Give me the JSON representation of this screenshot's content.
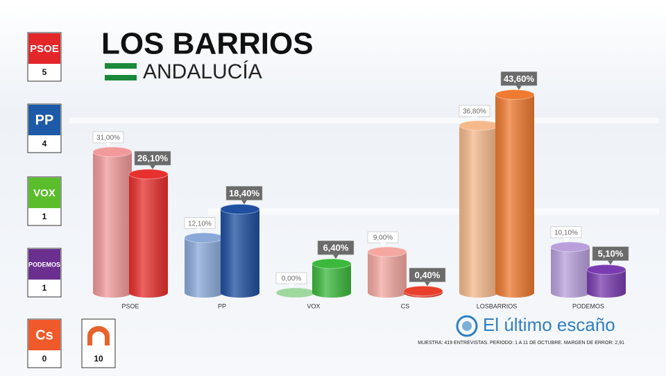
{
  "chart_data": {
    "type": "bar",
    "title": "LOS BARRIOS",
    "subtitle": "ANDALUCÍA",
    "categories": [
      "PSOE",
      "PP",
      "VOX",
      "CS",
      "LOSBARRIOS",
      "PODEMOS"
    ],
    "series": [
      {
        "colors": [
          "#f29a9a",
          "#8aa9d8",
          "#9fd89f",
          "#f4a8a0",
          "#f6b98c",
          "#b9a0dc"
        ],
        "values": [
          31.0,
          12.1,
          0.0,
          9.0,
          36.8,
          10.1
        ],
        "value_labels": [
          "31,00%",
          "12,10%",
          "0,00%",
          "9,00%",
          "36,80%",
          "10,10%"
        ]
      },
      {
        "colors": [
          "#e8302e",
          "#1f4fa0",
          "#3cb93c",
          "#e8402a",
          "#ef7a30",
          "#7a3cb0"
        ],
        "values": [
          26.1,
          18.4,
          6.4,
          0.4,
          43.6,
          5.1
        ],
        "value_labels": [
          "26,10%",
          "18,40%",
          "6,40%",
          "0,40%",
          "43,60%",
          "5,10%"
        ]
      }
    ],
    "seats": [
      {
        "party": "PSOE",
        "seats": 5,
        "color": "#e3262a"
      },
      {
        "party": "PP",
        "seats": 4,
        "color": "#1d5aa8"
      },
      {
        "party": "VOX",
        "seats": 1,
        "color": "#5bbd2b"
      },
      {
        "party": "PODEMOS",
        "seats": 1,
        "color": "#6b2f8f"
      },
      {
        "party": "Cs",
        "seats": 0,
        "color": "#f0592a"
      },
      {
        "party": null,
        "seats": 10,
        "color": "#e8622c"
      }
    ],
    "brand": "El último escaño",
    "note": "MUESTRA: 419 ENTREVISTAS. PERIODO: 1 A 11 DE OCTUBRE. MARGEN DE ERROR: 2,91"
  }
}
